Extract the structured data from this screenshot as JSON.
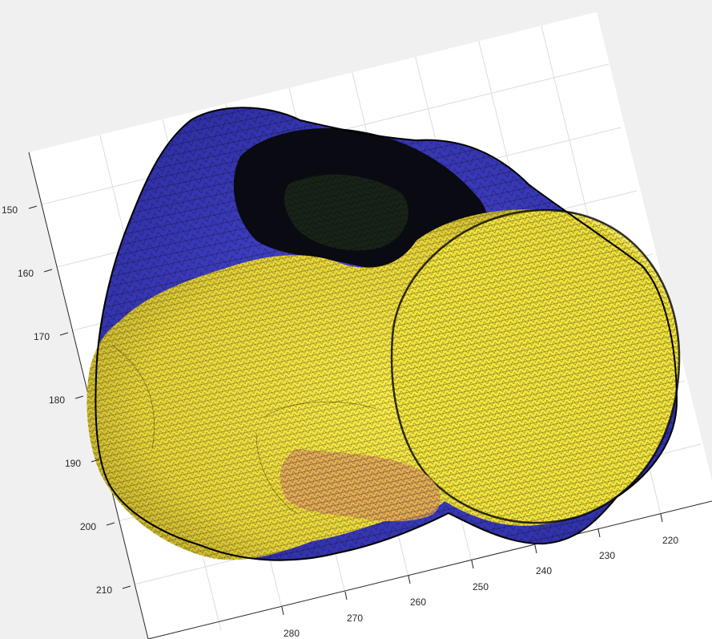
{
  "figure": {
    "background": "#f0f0f0",
    "axes_background": "#ffffff",
    "grid": true,
    "mesh_colors": {
      "posterior_surface": "#3f3fc4",
      "anterior_surface": "#f2e23a",
      "highlight": "#e8a060",
      "edges": "#000000"
    }
  },
  "axis_left": {
    "ticks": [
      "150",
      "160",
      "170",
      "180",
      "190",
      "200",
      "210"
    ]
  },
  "axis_bottom": {
    "ticks": [
      "220",
      "230",
      "240",
      "250",
      "260",
      "270",
      "280"
    ]
  }
}
